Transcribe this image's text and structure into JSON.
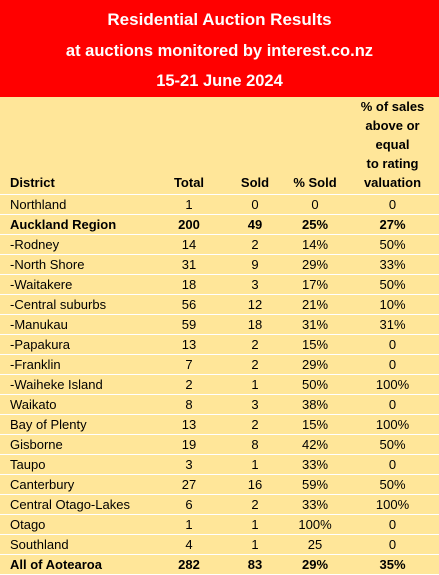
{
  "banner": {
    "title": "Residential Auction Results",
    "subtitle": "at auctions monitored by interest.co.nz",
    "date_range": "15-21 June 2024"
  },
  "table": {
    "headers": {
      "district": "District",
      "total": "Total",
      "sold": "Sold",
      "pct_sold": "% Sold",
      "pct_above_line1": "% of sales",
      "pct_above_line2": "above or equal",
      "pct_above_line3": "to rating",
      "pct_above_line4": "valuation"
    },
    "rows": [
      {
        "district": "Northland",
        "total": "1",
        "sold": "0",
        "pct_sold": "0",
        "pct_above": "0",
        "bold": false
      },
      {
        "district": "Auckland Region",
        "total": "200",
        "sold": "49",
        "pct_sold": "25%",
        "pct_above": "27%",
        "bold": true
      },
      {
        "district": "-Rodney",
        "total": "14",
        "sold": "2",
        "pct_sold": "14%",
        "pct_above": "50%",
        "bold": false
      },
      {
        "district": "-North Shore",
        "total": "31",
        "sold": "9",
        "pct_sold": "29%",
        "pct_above": "33%",
        "bold": false
      },
      {
        "district": "-Waitakere",
        "total": "18",
        "sold": "3",
        "pct_sold": "17%",
        "pct_above": "50%",
        "bold": false
      },
      {
        "district": "-Central suburbs",
        "total": "56",
        "sold": "12",
        "pct_sold": "21%",
        "pct_above": "10%",
        "bold": false
      },
      {
        "district": "-Manukau",
        "total": "59",
        "sold": "18",
        "pct_sold": "31%",
        "pct_above": "31%",
        "bold": false
      },
      {
        "district": "-Papakura",
        "total": "13",
        "sold": "2",
        "pct_sold": "15%",
        "pct_above": "0",
        "bold": false
      },
      {
        "district": "-Franklin",
        "total": "7",
        "sold": "2",
        "pct_sold": "29%",
        "pct_above": "0",
        "bold": false
      },
      {
        "district": "-Waiheke Island",
        "total": "2",
        "sold": "1",
        "pct_sold": "50%",
        "pct_above": "100%",
        "bold": false
      },
      {
        "district": "Waikato",
        "total": "8",
        "sold": "3",
        "pct_sold": "38%",
        "pct_above": "0",
        "bold": false
      },
      {
        "district": "Bay of Plenty",
        "total": "13",
        "sold": "2",
        "pct_sold": "15%",
        "pct_above": "100%",
        "bold": false
      },
      {
        "district": "Gisborne",
        "total": "19",
        "sold": "8",
        "pct_sold": "42%",
        "pct_above": "50%",
        "bold": false
      },
      {
        "district": "Taupo",
        "total": "3",
        "sold": "1",
        "pct_sold": "33%",
        "pct_above": "0",
        "bold": false
      },
      {
        "district": "Canterbury",
        "total": "27",
        "sold": "16",
        "pct_sold": "59%",
        "pct_above": "50%",
        "bold": false
      },
      {
        "district": "Central Otago-Lakes",
        "total": "6",
        "sold": "2",
        "pct_sold": "33%",
        "pct_above": "100%",
        "bold": false
      },
      {
        "district": "Otago",
        "total": "1",
        "sold": "1",
        "pct_sold": "100%",
        "pct_above": "0",
        "bold": false
      },
      {
        "district": "Southland",
        "total": "4",
        "sold": "1",
        "pct_sold": "25",
        "pct_above": "0",
        "bold": false
      },
      {
        "district": "All of Aotearoa",
        "total": "282",
        "sold": "83",
        "pct_sold": "29%",
        "pct_above": "35%",
        "bold": true
      }
    ]
  },
  "colors": {
    "banner_bg": "#FF0000",
    "banner_text": "#FFFFFF",
    "table_bg": "#FFE699"
  }
}
